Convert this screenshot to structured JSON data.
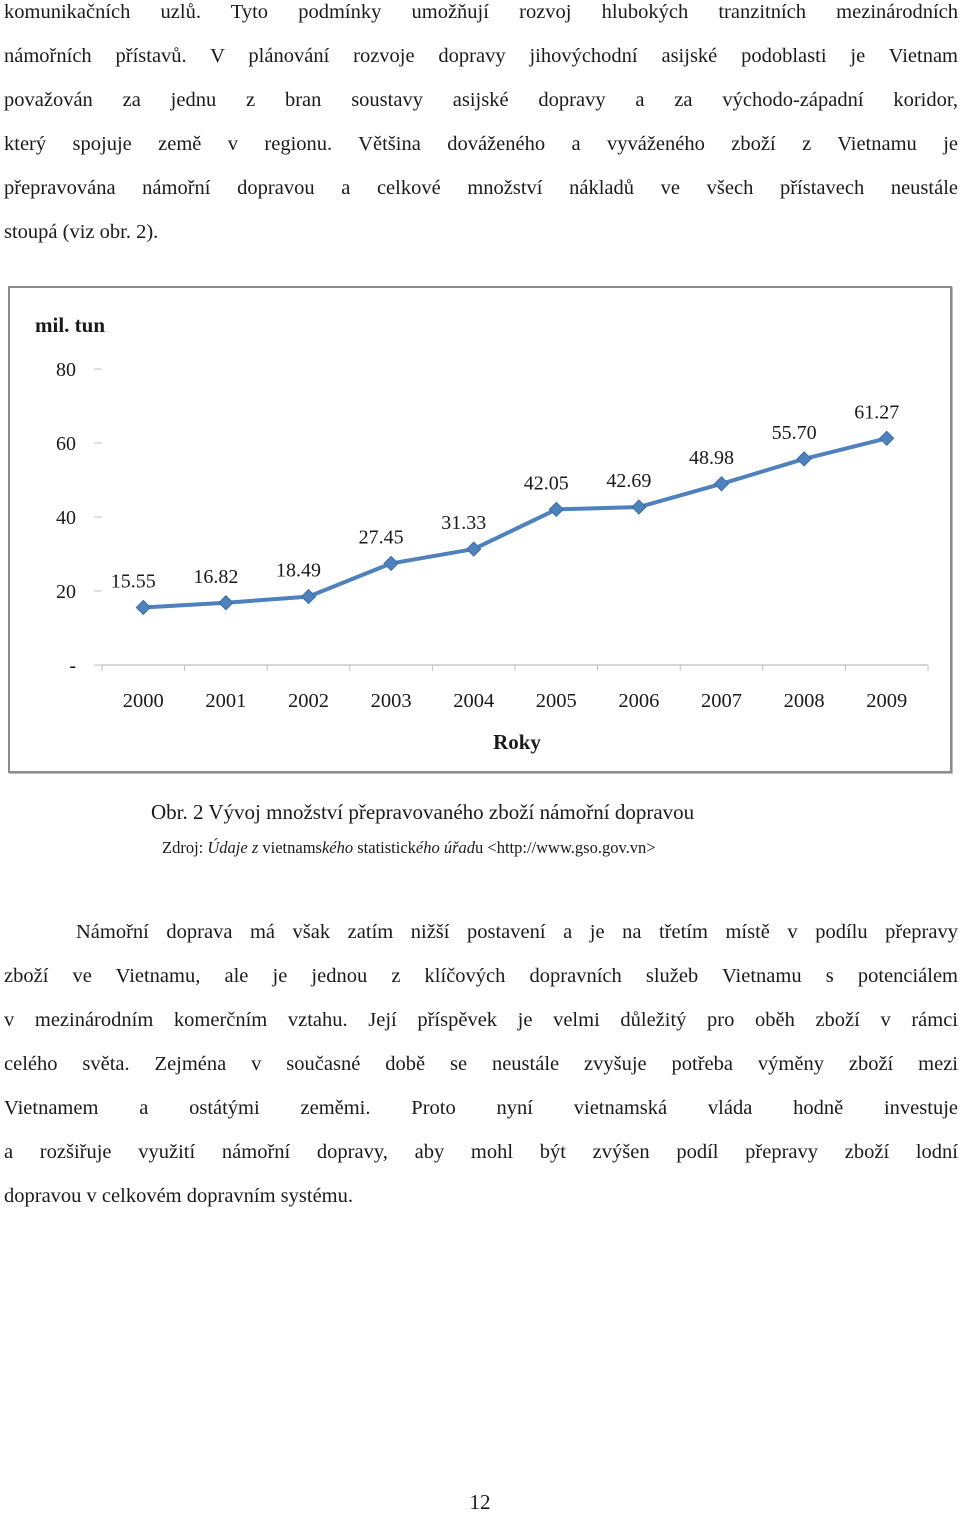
{
  "paragraph1": {
    "lines": [
      "komunikačních uzlů. Tyto podmínky umožňují rozvoj hlubokých tranzitních mezinárodních",
      "námořních přístavů. V plánování rozvoje dopravy jihovýchodní asijské podoblasti je Vietnam",
      "považován za jednu z bran soustavy asijské dopravy a za východo-západní koridor,",
      "který spojuje země v regionu. Většina dováženého a vyváženého zboží z Vietnamu je",
      "přepravována námořní dopravou a celkové množství nákladů ve všech přístavech neustále",
      "stoupá (viz obr. 2)."
    ]
  },
  "chart_data": {
    "type": "line",
    "title": "",
    "xlabel": "Roky",
    "ylabel": "mil. tun",
    "categories": [
      "2000",
      "2001",
      "2002",
      "2003",
      "2004",
      "2005",
      "2006",
      "2007",
      "2008",
      "2009"
    ],
    "series": [
      {
        "values": [
          15.55,
          16.82,
          18.49,
          27.45,
          31.33,
          42.05,
          42.69,
          48.98,
          55.7,
          61.27
        ]
      }
    ],
    "data_labels": [
      "15.55",
      "16.82",
      "18.49",
      "27.45",
      "31.33",
      "42.05",
      "42.69",
      "48.98",
      "55.70",
      "61.27"
    ],
    "y_ticks": [
      "-",
      "20",
      "40",
      "60",
      "80"
    ],
    "ylim": [
      0,
      80
    ],
    "grid": false,
    "legend": "none",
    "line_color": "#4f81bd"
  },
  "caption": {
    "figure": "Obr. 2 Vývoj množství přepravovaného zboží námořní dopravou",
    "source_prefix": "Zdroj: ",
    "source_italic1": "Údaje z",
    "source_plain1": " vietnams",
    "source_italic2": "kého",
    "source_plain2": " statistick",
    "source_italic3": "ého úřad",
    "source_plain3": "u <http://www.gso.gov.vn>"
  },
  "paragraph2": {
    "lines": [
      "Námořní doprava má však zatím nižší postavení a je na třetím místě v podílu přepravy",
      "zboží ve Vietnamu, ale je jednou z klíčových dopravních služeb Vietnamu s potenciálem",
      "v mezinárodním komerčním vztahu. Její příspěvek je velmi důležitý pro oběh zboží v rámci",
      "celého světa. Zejména v současné době se neustále zvyšuje potřeba výměny zboží mezi",
      "Vietnamem a ostátými zeměmi. Proto nyní vietnamská vláda hodně investuje",
      "a rozšiřuje využití námořní dopravy, aby mohl být zvýšen podíl přepravy zboží lodní",
      "dopravou v celkovém dopravním systému."
    ]
  },
  "page_number": "12"
}
